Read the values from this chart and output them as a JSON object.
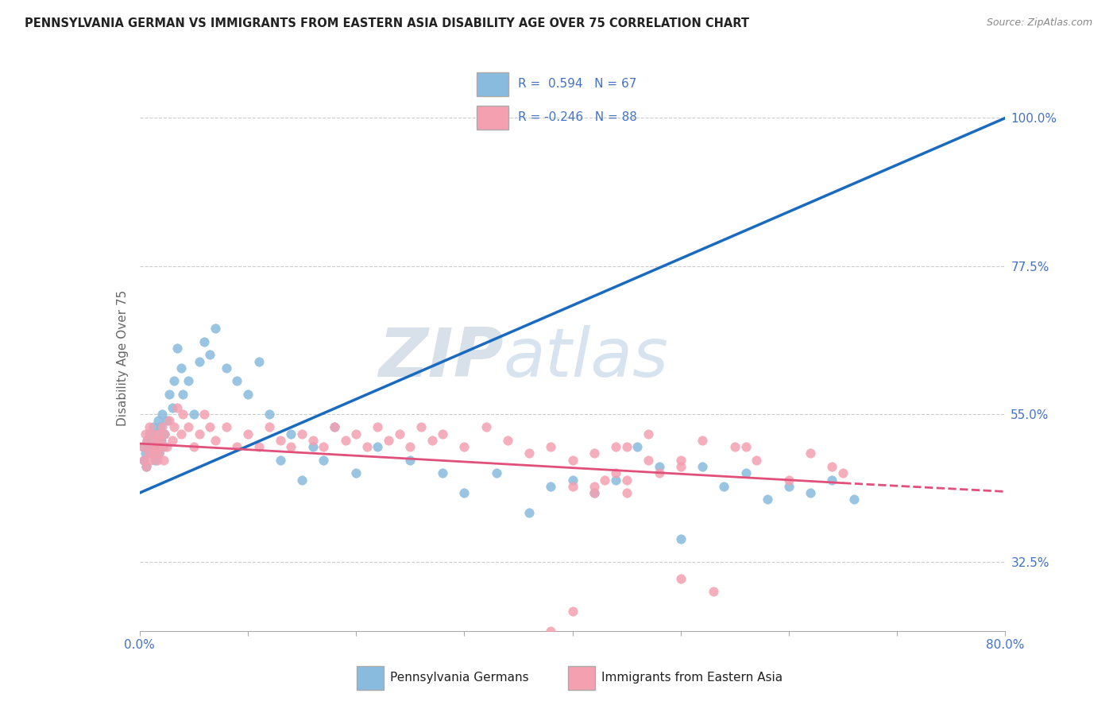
{
  "title": "PENNSYLVANIA GERMAN VS IMMIGRANTS FROM EASTERN ASIA DISABILITY AGE OVER 75 CORRELATION CHART",
  "source_text": "Source: ZipAtlas.com",
  "ylabel": "Disability Age Over 75",
  "xlim": [
    0.0,
    80.0
  ],
  "ylim": [
    22.0,
    105.0
  ],
  "y_ticks_right": [
    "32.5%",
    "55.0%",
    "77.5%",
    "100.0%"
  ],
  "y_ticks_right_vals": [
    32.5,
    55.0,
    77.5,
    100.0
  ],
  "legend_blue_r": "0.594",
  "legend_blue_n": "67",
  "legend_pink_r": "-0.246",
  "legend_pink_n": "88",
  "blue_color": "#88bbdd",
  "pink_color": "#f4a0b0",
  "blue_line_color": "#1a6bbf",
  "pink_line_color": "#e0507a",
  "watermark_color": "#d0dde8",
  "blue_scatter_x": [
    0.3,
    0.4,
    0.5,
    0.6,
    0.7,
    0.8,
    0.9,
    1.0,
    1.1,
    1.2,
    1.3,
    1.4,
    1.5,
    1.6,
    1.7,
    1.8,
    1.9,
    2.0,
    2.1,
    2.2,
    2.3,
    2.5,
    2.7,
    3.0,
    3.2,
    3.5,
    3.8,
    4.0,
    4.5,
    5.0,
    5.5,
    6.0,
    6.5,
    7.0,
    8.0,
    9.0,
    10.0,
    11.0,
    12.0,
    13.0,
    14.0,
    15.0,
    16.0,
    17.0,
    18.0,
    20.0,
    22.0,
    25.0,
    28.0,
    30.0,
    33.0,
    36.0,
    38.0,
    40.0,
    42.0,
    44.0,
    46.0,
    48.0,
    50.0,
    52.0,
    54.0,
    56.0,
    58.0,
    60.0,
    62.0,
    64.0,
    66.0
  ],
  "blue_scatter_y": [
    50.0,
    48.0,
    49.0,
    47.0,
    51.0,
    50.0,
    52.0,
    49.0,
    51.0,
    50.0,
    53.0,
    48.0,
    52.0,
    50.0,
    54.0,
    49.0,
    53.0,
    51.0,
    55.0,
    50.0,
    52.0,
    54.0,
    58.0,
    56.0,
    60.0,
    65.0,
    62.0,
    58.0,
    60.0,
    55.0,
    63.0,
    66.0,
    64.0,
    68.0,
    62.0,
    60.0,
    58.0,
    63.0,
    55.0,
    48.0,
    52.0,
    45.0,
    50.0,
    48.0,
    53.0,
    46.0,
    50.0,
    48.0,
    46.0,
    43.0,
    46.0,
    40.0,
    44.0,
    45.0,
    43.0,
    45.0,
    50.0,
    47.0,
    36.0,
    47.0,
    44.0,
    46.0,
    42.0,
    44.0,
    43.0,
    45.0,
    42.0
  ],
  "pink_scatter_x": [
    0.3,
    0.4,
    0.5,
    0.6,
    0.7,
    0.8,
    0.9,
    1.0,
    1.1,
    1.2,
    1.3,
    1.4,
    1.5,
    1.6,
    1.7,
    1.8,
    1.9,
    2.0,
    2.1,
    2.2,
    2.3,
    2.5,
    2.7,
    3.0,
    3.2,
    3.5,
    3.8,
    4.0,
    4.5,
    5.0,
    5.5,
    6.0,
    6.5,
    7.0,
    8.0,
    9.0,
    10.0,
    11.0,
    12.0,
    13.0,
    14.0,
    15.0,
    16.0,
    17.0,
    18.0,
    19.0,
    20.0,
    21.0,
    22.0,
    23.0,
    24.0,
    25.0,
    26.0,
    27.0,
    28.0,
    30.0,
    32.0,
    34.0,
    36.0,
    38.0,
    40.0,
    42.0,
    44.0,
    47.0,
    50.0,
    53.0,
    56.0,
    60.0,
    62.0,
    64.0,
    65.0,
    45.0,
    47.0,
    50.0,
    52.0,
    55.0,
    57.0,
    45.0,
    48.0,
    50.0,
    43.0,
    42.0,
    44.0,
    40.0,
    38.0,
    45.0,
    42.0,
    40.0
  ],
  "pink_scatter_y": [
    50.0,
    48.0,
    52.0,
    47.0,
    51.0,
    49.0,
    53.0,
    48.0,
    50.0,
    52.0,
    49.0,
    51.0,
    50.0,
    48.0,
    52.0,
    49.0,
    51.0,
    50.0,
    53.0,
    48.0,
    52.0,
    50.0,
    54.0,
    51.0,
    53.0,
    56.0,
    52.0,
    55.0,
    53.0,
    50.0,
    52.0,
    55.0,
    53.0,
    51.0,
    53.0,
    50.0,
    52.0,
    50.0,
    53.0,
    51.0,
    50.0,
    52.0,
    51.0,
    50.0,
    53.0,
    51.0,
    52.0,
    50.0,
    53.0,
    51.0,
    52.0,
    50.0,
    53.0,
    51.0,
    52.0,
    50.0,
    53.0,
    51.0,
    49.0,
    50.0,
    48.0,
    49.0,
    50.0,
    48.0,
    30.0,
    28.0,
    50.0,
    45.0,
    49.0,
    47.0,
    46.0,
    50.0,
    52.0,
    48.0,
    51.0,
    50.0,
    48.0,
    43.0,
    46.0,
    47.0,
    45.0,
    44.0,
    46.0,
    44.0,
    22.0,
    45.0,
    43.0,
    25.0
  ],
  "blue_line_x0": 0.0,
  "blue_line_y0": 43.0,
  "blue_line_x1": 80.0,
  "blue_line_y1": 100.0,
  "pink_line_x0": 0.0,
  "pink_line_y0": 50.5,
  "pink_line_x1": 65.0,
  "pink_line_y1": 44.5,
  "pink_dash_x0": 65.0,
  "pink_dash_y0": 44.5,
  "pink_dash_x1": 80.0,
  "pink_dash_y1": 43.2
}
